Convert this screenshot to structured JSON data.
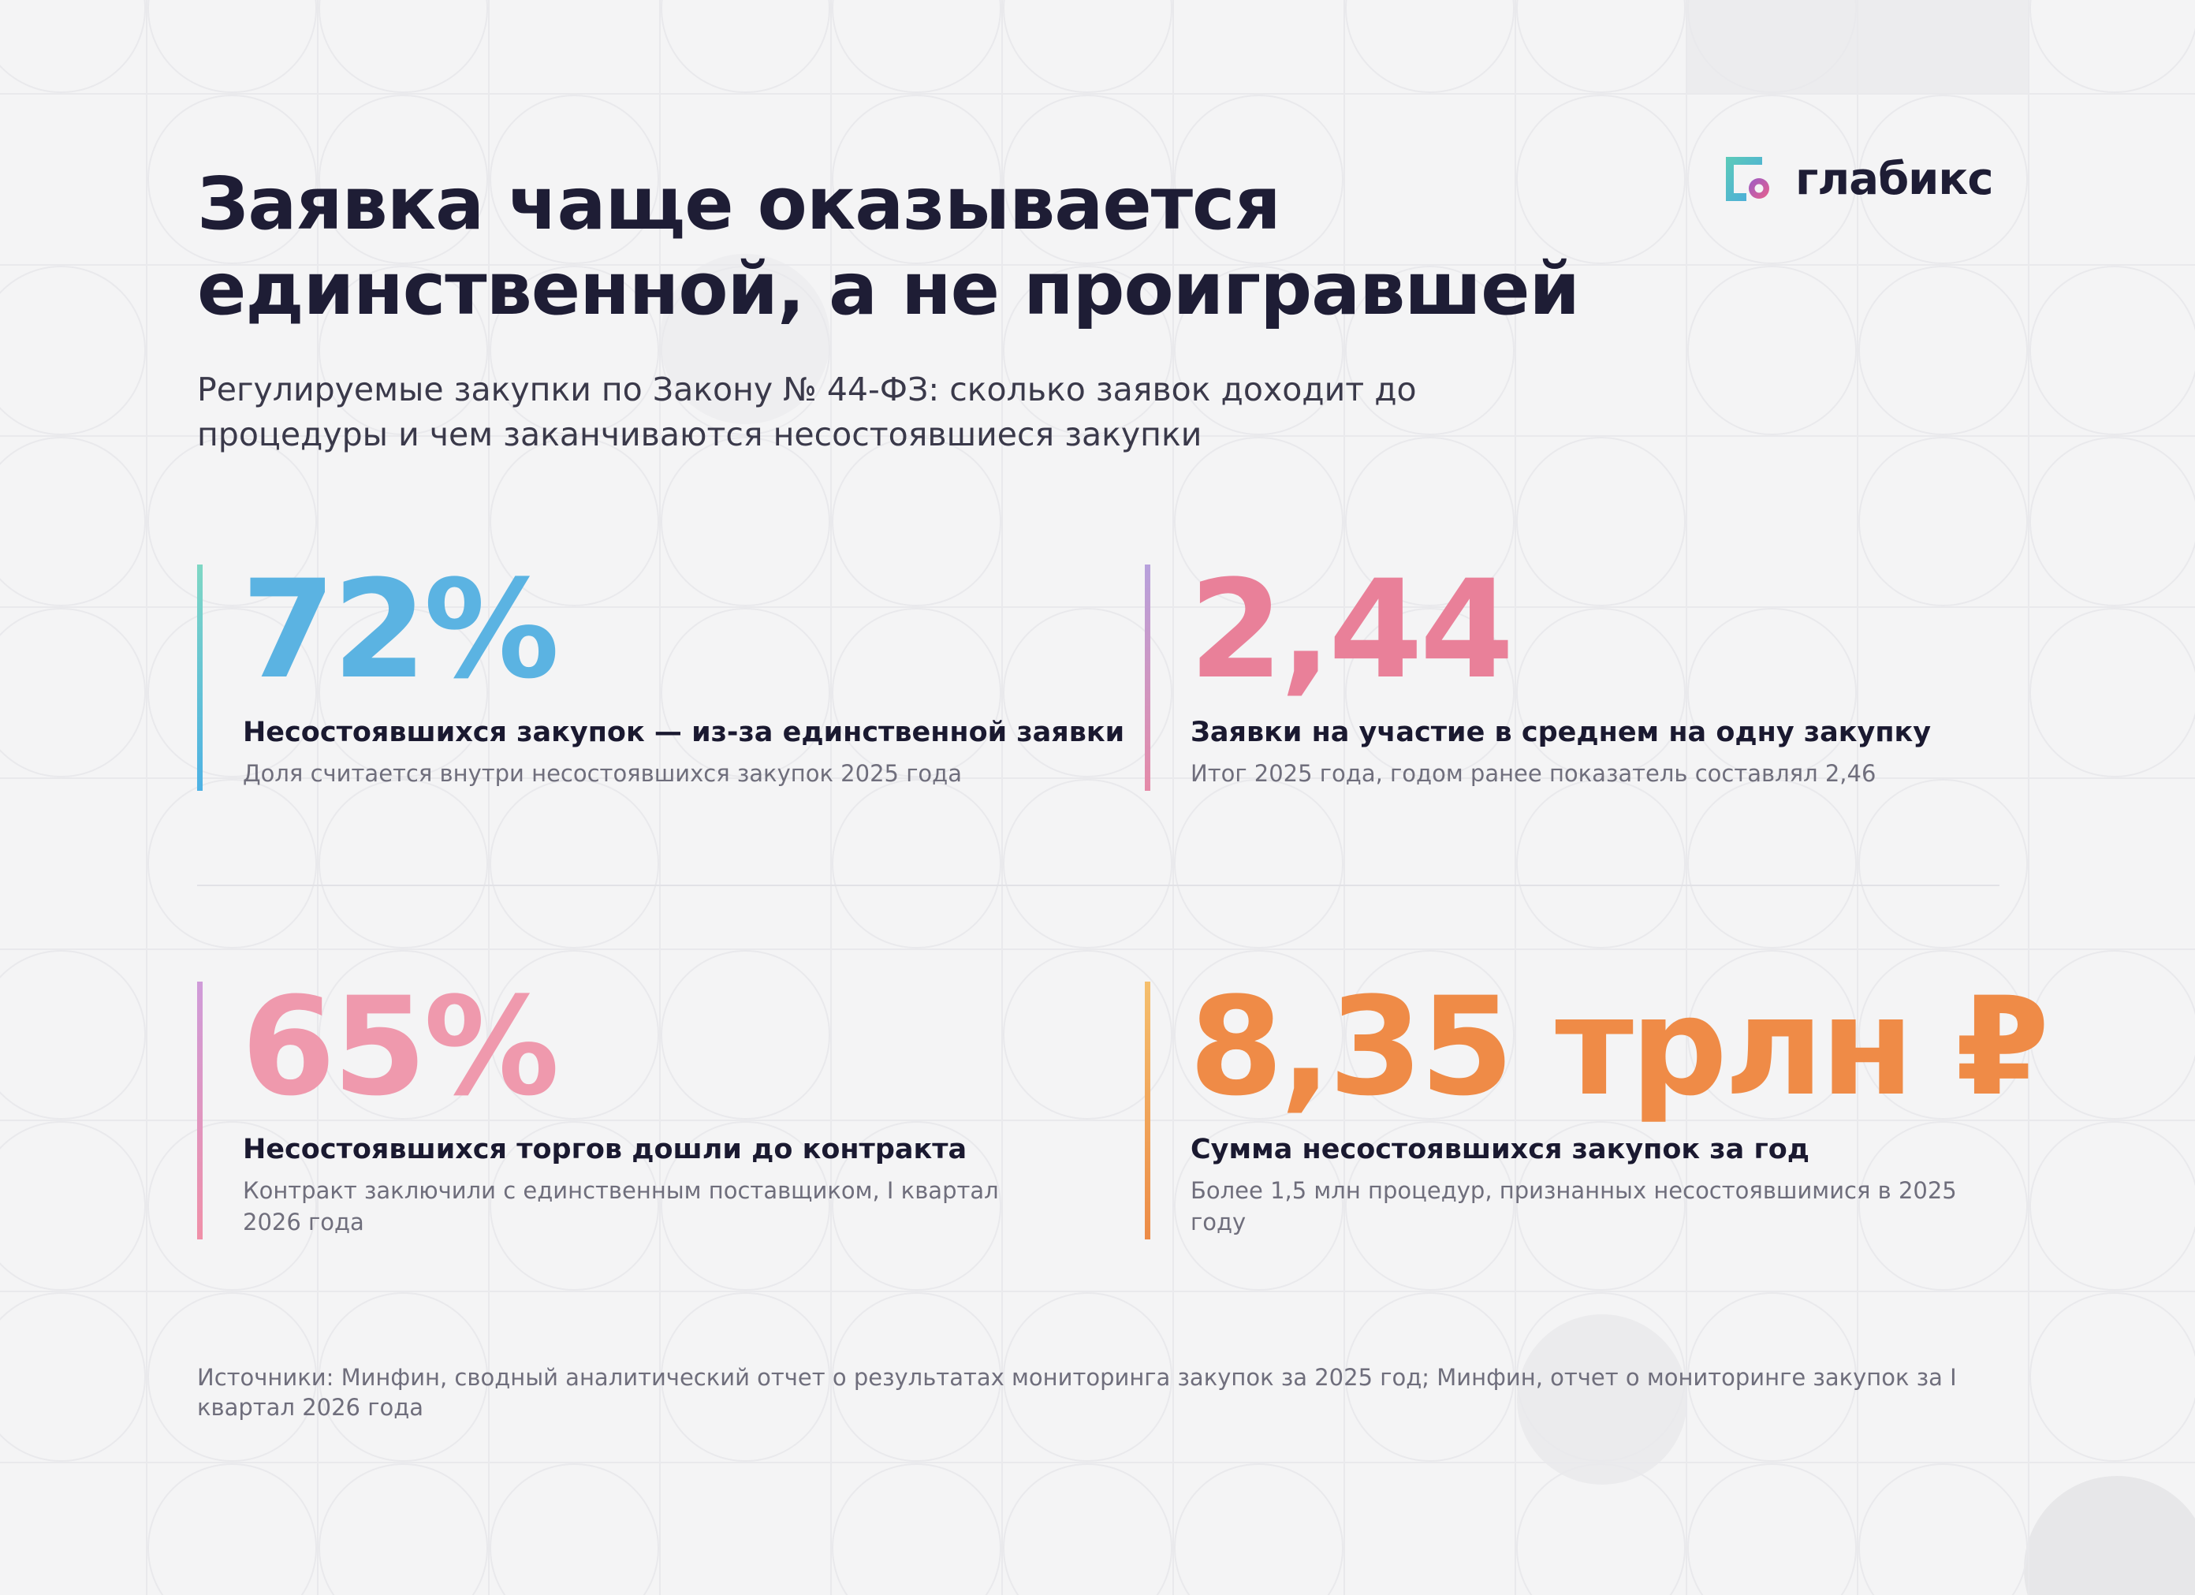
{
  "brand": {
    "name": "глабикс",
    "colors": {
      "teal": "#5ccbb8",
      "blue": "#4aa8e0",
      "purple": "#9a5cc7",
      "pink": "#e8608c"
    },
    "icon": "glabiks-logo-icon"
  },
  "header": {
    "title_line1": "Заявка чаще оказывается",
    "title_line2": "единственной, а не проигравшей",
    "subtitle_line1": "Регулируемые закупки по Закону № 44-ФЗ: сколько заявок доходит до",
    "subtitle_line2": "процедуры и чем заканчиваются несостоявшиеся закупки"
  },
  "stats": [
    {
      "value": "72%",
      "label": "Несостоявшихся закупок — из-за единственной заявки",
      "note": "Доля считается внутри несостоявшихся закупок 2025 года",
      "color": "#5bb3e2"
    },
    {
      "value": "2,44",
      "label": "Заявки на участие в среднем на одну закупку",
      "note": "Итог 2025 года, годом ранее показатель составлял 2,46",
      "color": "#e98099"
    },
    {
      "value": "65%",
      "label": "Несостоявшихся торгов дошли до контракта",
      "note": "Контракт заключили с единственным поставщиком, I квартал 2026 года",
      "color": "#ef99ad"
    },
    {
      "value": "8,35 трлн ₽",
      "label": "Сумма несостоявшихся закупок за год",
      "note": "Более 1,5 млн процедур, признанных несостоявшимися в 2025 году",
      "color": "#ef8b47"
    }
  ],
  "footer": {
    "sources": "Источники: Минфин, сводный аналитический отчет о результатах мониторинга закупок за 2025 год; Минфин, отчет о мониторинге закупок за I квартал 2026 года"
  }
}
